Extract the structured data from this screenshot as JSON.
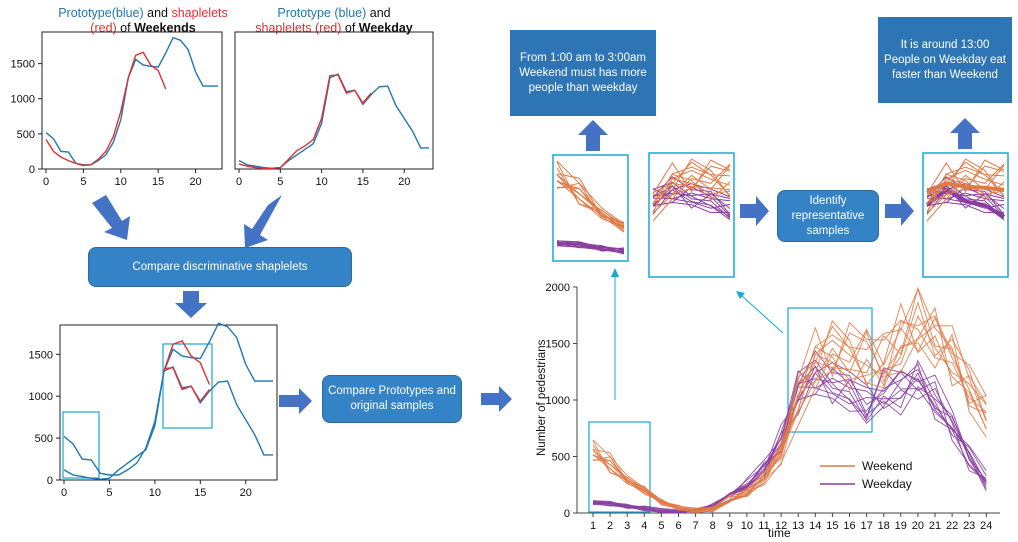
{
  "captions": {
    "weekends": {
      "part1": "Prototype(blue)",
      "part2": " and ",
      "part3": "shaplelets",
      "part4": "(red)",
      "part5": " of ",
      "part6": "Weekends"
    },
    "weekday": {
      "part1": "Prototype (blue)",
      "part2": " and",
      "part3": "shaplelets (red)",
      "part4": " of ",
      "part5": "Weekday"
    }
  },
  "boxes": {
    "compare_shapelets": "Compare discriminative shaplelets",
    "compare_prototypes": "Compare Prototypes and  original samples",
    "identify": "Identify representative samples",
    "insight_weekend": "From 1:00 am to 3:00am Weekend must has more people than weekday",
    "insight_weekday": "It is around 13:00 People on Weekday eat faster than Weekend"
  },
  "colors": {
    "prototype": "#1f77b4",
    "shapelet": "#e03131",
    "weekend": "#e07a45",
    "weekday": "#8a3fa0",
    "highlight": "#17a8d4",
    "box": "#2e75b6",
    "arrow": "#4472c4"
  },
  "chart_data": [
    {
      "type": "line",
      "title": "Prototype(blue) and shaplelets (red) of Weekends",
      "x_ticks": [
        "0",
        "5",
        "10",
        "15",
        "20"
      ],
      "y_ticks": [
        "0",
        "500",
        "1000",
        "1500"
      ],
      "xlim": [
        0,
        23
      ],
      "ylim": [
        0,
        1950
      ],
      "series": [
        {
          "role": "prototype",
          "x": [
            0,
            1,
            2,
            3,
            4,
            5,
            6,
            7,
            8,
            9,
            10,
            11,
            12,
            13,
            14,
            15,
            16,
            17,
            18,
            19,
            20,
            21,
            22,
            23
          ],
          "y": [
            520,
            430,
            250,
            240,
            80,
            60,
            60,
            120,
            200,
            380,
            700,
            1300,
            1560,
            1480,
            1460,
            1450,
            1650,
            1870,
            1830,
            1700,
            1380,
            1180,
            1180,
            1180
          ]
        },
        {
          "role": "shapelet",
          "x": [
            0,
            1,
            2,
            3,
            4,
            5,
            6,
            7,
            8,
            9,
            10,
            11,
            12,
            13,
            14,
            15,
            16
          ],
          "y": [
            420,
            250,
            170,
            120,
            80,
            50,
            60,
            140,
            250,
            460,
            820,
            1300,
            1620,
            1660,
            1480,
            1400,
            1140
          ]
        }
      ]
    },
    {
      "type": "line",
      "title": "Prototype (blue) and shaplelets (red) of Weekday",
      "x_ticks": [
        "0",
        "5",
        "10",
        "15",
        "20"
      ],
      "y_ticks": [],
      "xlim": [
        0,
        23
      ],
      "ylim": [
        0,
        1950
      ],
      "series": [
        {
          "role": "prototype",
          "x": [
            0,
            1,
            2,
            3,
            4,
            5,
            6,
            7,
            8,
            9,
            10,
            11,
            12,
            13,
            14,
            15,
            16,
            17,
            18,
            19,
            20,
            21,
            22,
            23
          ],
          "y": [
            120,
            60,
            40,
            20,
            10,
            20,
            120,
            200,
            280,
            360,
            650,
            1300,
            1350,
            1100,
            1120,
            920,
            1060,
            1170,
            1180,
            900,
            720,
            540,
            300,
            300
          ]
        },
        {
          "role": "shapelet",
          "x": [
            0,
            1,
            2,
            3,
            4,
            5,
            6,
            7,
            8,
            9,
            10,
            11,
            12,
            13,
            14,
            15,
            16
          ],
          "y": [
            70,
            40,
            20,
            10,
            10,
            20,
            140,
            260,
            330,
            420,
            720,
            1330,
            1340,
            1080,
            1120,
            940,
            1080
          ]
        }
      ]
    },
    {
      "type": "line",
      "title": "",
      "x_ticks": [
        "0",
        "5",
        "10",
        "15",
        "20"
      ],
      "y_ticks": [
        "0",
        "500",
        "1000",
        "1500"
      ],
      "xlim": [
        0,
        23
      ],
      "ylim": [
        0,
        1850
      ],
      "series": [
        {
          "role": "prototype",
          "x": [
            0,
            1,
            2,
            3,
            4,
            5,
            6,
            7,
            8,
            9,
            10,
            11,
            12,
            13,
            14,
            15,
            16,
            17,
            18,
            19,
            20,
            21,
            22,
            23
          ],
          "y": [
            520,
            430,
            250,
            240,
            80,
            60,
            60,
            120,
            200,
            380,
            700,
            1300,
            1560,
            1480,
            1460,
            1450,
            1650,
            1870,
            1830,
            1700,
            1380,
            1180,
            1180,
            1180
          ]
        },
        {
          "role": "prototype",
          "x": [
            0,
            1,
            2,
            3,
            4,
            5,
            6,
            7,
            8,
            9,
            10,
            11,
            12,
            13,
            14,
            15,
            16,
            17,
            18,
            19,
            20,
            21,
            22,
            23
          ],
          "y": [
            120,
            60,
            40,
            20,
            10,
            20,
            120,
            200,
            280,
            360,
            650,
            1300,
            1350,
            1100,
            1120,
            920,
            1060,
            1170,
            1180,
            900,
            720,
            540,
            300,
            300
          ]
        },
        {
          "role": "shapelet",
          "x": [
            11,
            12,
            13,
            14,
            15,
            16
          ],
          "y": [
            1300,
            1620,
            1660,
            1480,
            1400,
            1140
          ]
        },
        {
          "role": "shapelet",
          "x": [
            11,
            12,
            13,
            14,
            15,
            16
          ],
          "y": [
            1330,
            1340,
            1080,
            1120,
            940,
            1080
          ]
        }
      ]
    },
    {
      "type": "line",
      "title": "",
      "xlabel": "time",
      "ylabel": "Number of pedestrians",
      "x_ticks": [
        "1",
        "2",
        "3",
        "4",
        "5",
        "6",
        "7",
        "8",
        "9",
        "10",
        "11",
        "12",
        "13",
        "14",
        "15",
        "16",
        "17",
        "18",
        "19",
        "20",
        "21",
        "22",
        "23",
        "24"
      ],
      "y_ticks": [
        "0",
        "500",
        "1000",
        "1500",
        "2000"
      ],
      "xlim": [
        1,
        24
      ],
      "ylim": [
        0,
        2000
      ],
      "legend": [
        "Weekend",
        "Weekday"
      ],
      "legend_position": "bottom-right"
    }
  ]
}
